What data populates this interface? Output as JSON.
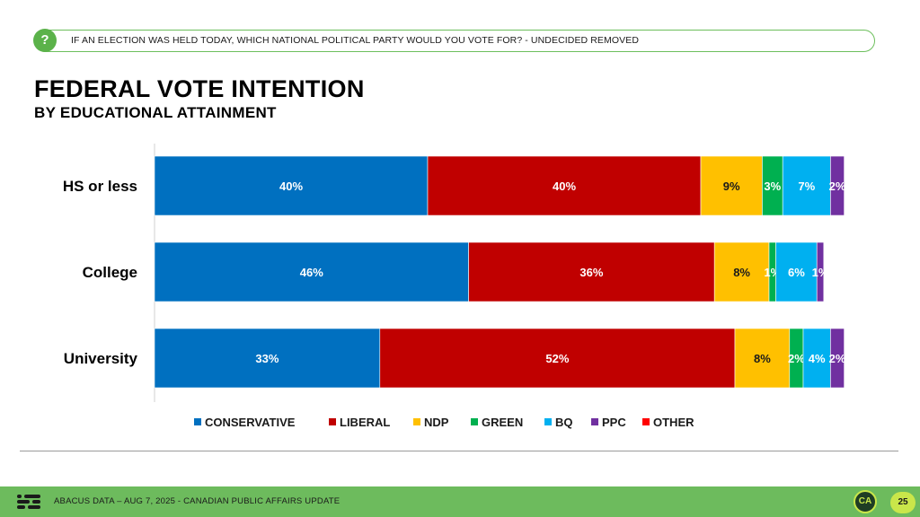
{
  "header": {
    "question_icon": "question-mark-icon",
    "question_glyph": "?",
    "question": "IF AN ELECTION WAS HELD TODAY, WHICH NATIONAL POLITICAL PARTY WOULD YOU VOTE FOR? - UNDECIDED REMOVED"
  },
  "title": "FEDERAL VOTE INTENTION",
  "subtitle": "BY EDUCATIONAL ATTAINMENT",
  "chart_data": {
    "type": "bar",
    "orientation": "horizontal",
    "stacked": true,
    "categories": [
      "HS or less",
      "College",
      "University"
    ],
    "xlim": [
      0,
      100
    ],
    "grid": false,
    "legend_position": "bottom",
    "series": [
      {
        "name": "CONSERVATIVE",
        "color": "#0070c0",
        "values": [
          40,
          46,
          33
        ],
        "labels": [
          "40%",
          "46%",
          "33%"
        ]
      },
      {
        "name": "LIBERAL",
        "color": "#c00000",
        "values": [
          40,
          36,
          52
        ],
        "labels": [
          "40%",
          "36%",
          "52%"
        ]
      },
      {
        "name": "NDP",
        "color": "#ffc000",
        "values": [
          9,
          8,
          8
        ],
        "labels": [
          "9%",
          "8%",
          "8%"
        ]
      },
      {
        "name": "GREEN",
        "color": "#00b050",
        "values": [
          3,
          1,
          2
        ],
        "labels": [
          "3%",
          "1%",
          "2%"
        ]
      },
      {
        "name": "BQ",
        "color": "#00b0f0",
        "values": [
          7,
          6,
          4
        ],
        "labels": [
          "7%",
          "6%",
          "4%"
        ]
      },
      {
        "name": "PPC",
        "color": "#7030a0",
        "values": [
          2,
          1,
          2
        ],
        "labels": [
          "2%",
          "1%",
          "2%"
        ]
      },
      {
        "name": "OTHER",
        "color": "#ff0000",
        "values": [
          0,
          0,
          0
        ],
        "labels": [
          "",
          "",
          ""
        ]
      }
    ]
  },
  "footer": {
    "text": "ABACUS DATA – AUG 7, 2025 - CANADIAN PUBLIC AFFAIRS UPDATE",
    "logo_icon": "abacus-logo-icon",
    "badge_icon": "ca-badge-icon",
    "badge_text": "CA",
    "page_number": "25"
  }
}
